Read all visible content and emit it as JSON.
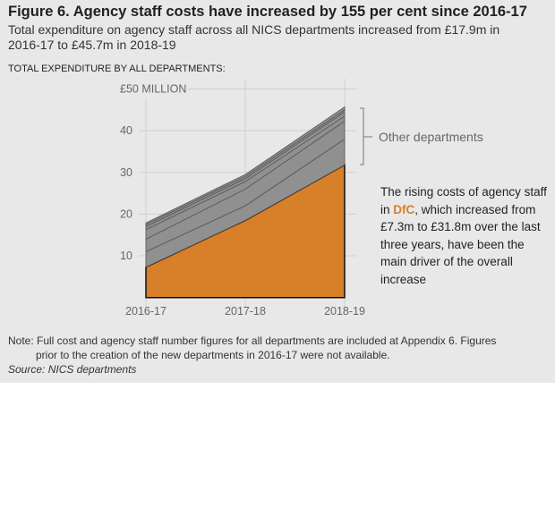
{
  "title": "Figure 6. Agency staff costs have increased by 155 per cent since 2016-17",
  "subtitle_line1": "Total expenditure on agency staff across all NICS departments increased from £17.9m in",
  "subtitle_line2": "2016-17 to £45.7m in 2018-19",
  "chart_label": "TOTAL EXPENDITURE BY ALL DEPARTMENTS:",
  "annotation": {
    "before": "The rising costs of agency staff in ",
    "highlight": "DfC",
    "after": ", which increased from £7.3m to £31.8m over the last three years, have been the main driver of the overall increase"
  },
  "other_label": "Other departments",
  "note_line1": "Note: Full cost and agency staff number figures for all departments are included at Appendix 6. Figures",
  "note_line2": "prior to the creation of the new departments in 2016-17 were not available.",
  "source": "Source: NICS departments",
  "chart_data": {
    "type": "area",
    "stacked": true,
    "categories": [
      "2016-17",
      "2017-18",
      "2018-19"
    ],
    "ylim": [
      0,
      50
    ],
    "yticks": [
      10,
      20,
      30,
      40,
      50
    ],
    "ytick_labels": [
      "10",
      "20",
      "30",
      "40",
      "£50 MILLION"
    ],
    "grid": true,
    "series": [
      {
        "name": "DfC",
        "values": [
          7.3,
          18.5,
          31.8
        ],
        "color": "#d87f2a"
      },
      {
        "values": [
          3.7,
          3.5,
          6.2
        ],
        "color": "#8f908f"
      },
      {
        "values": [
          3.0,
          4.0,
          4.3
        ],
        "color": "#8f908f"
      },
      {
        "values": [
          2.3,
          1.8,
          1.2
        ],
        "color": "#8f908f"
      },
      {
        "values": [
          0.7,
          0.7,
          1.0
        ],
        "color": "#8f908f"
      },
      {
        "values": [
          0.5,
          0.5,
          0.5
        ],
        "color": "#8f908f"
      },
      {
        "values": [
          0.4,
          0.5,
          0.7
        ],
        "color": "#8f908f"
      }
    ],
    "totals": [
      17.9,
      29.5,
      45.7
    ]
  }
}
